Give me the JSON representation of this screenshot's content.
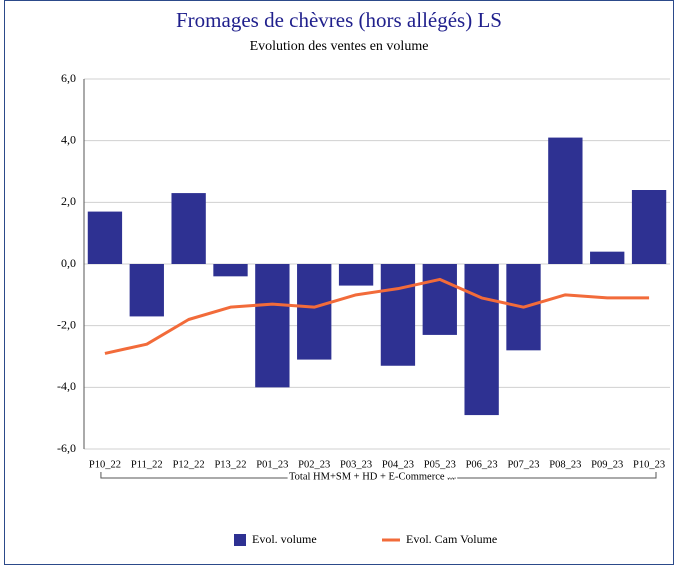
{
  "chart_data": {
    "type": "bar_line",
    "title": "Fromages de chèvres (hors allégés) LS",
    "subtitle": "Evolution des ventes en volume",
    "group_label": "Total HM+SM + HD + E-Commerce ...",
    "categories": [
      "P10_22",
      "P11_22",
      "P12_22",
      "P13_22",
      "P01_23",
      "P02_23",
      "P03_23",
      "P04_23",
      "P05_23",
      "P06_23",
      "P07_23",
      "P08_23",
      "P09_23",
      "P10_23"
    ],
    "series": [
      {
        "name": "Evol. volume",
        "type": "bar",
        "color": "#2e3192",
        "values": [
          1.7,
          -1.7,
          2.3,
          -0.4,
          -4.0,
          -3.1,
          -0.7,
          -3.3,
          -2.3,
          -4.9,
          -2.8,
          4.1,
          0.4,
          2.4
        ]
      },
      {
        "name": "Evol. Cam Volume",
        "type": "line",
        "color": "#f26b3a",
        "values": [
          -2.9,
          -2.6,
          -1.8,
          -1.4,
          -1.3,
          -1.4,
          -1.0,
          -0.8,
          -0.5,
          -1.1,
          -1.4,
          -1.0,
          -1.1,
          -1.1
        ]
      }
    ],
    "ylim": [
      -6,
      6
    ],
    "yticks": [
      {
        "value": -6,
        "label": "-6,0"
      },
      {
        "value": -4,
        "label": "-4,0"
      },
      {
        "value": -2,
        "label": "-2,0"
      },
      {
        "value": 0,
        "label": "0,0"
      },
      {
        "value": 2,
        "label": "2,0"
      },
      {
        "value": 4,
        "label": "4,0"
      },
      {
        "value": 6,
        "label": "6,0"
      }
    ],
    "grid": true,
    "legend": "bottom"
  }
}
